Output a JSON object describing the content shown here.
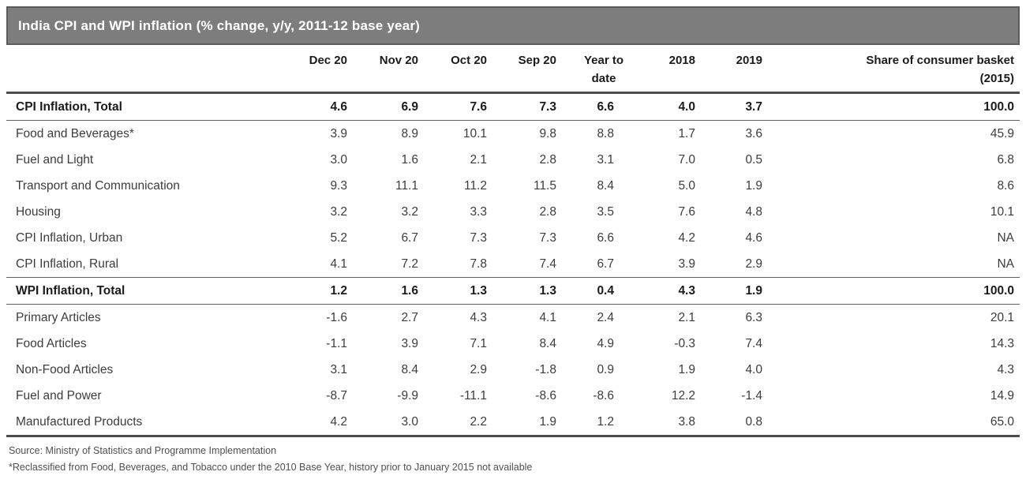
{
  "title": "India CPI and WPI inflation (% change, y/y, 2011-12 base year)",
  "chart_data": {
    "type": "table",
    "title": "India CPI and WPI inflation (% change, y/y, 2011-12 base year)",
    "columns": [
      {
        "l1": "",
        "l2": ""
      },
      {
        "l1": "Dec 20",
        "l2": ""
      },
      {
        "l1": "Nov 20",
        "l2": ""
      },
      {
        "l1": "Oct 20",
        "l2": ""
      },
      {
        "l1": "Sep 20",
        "l2": ""
      },
      {
        "l1": "Year to",
        "l2": "date"
      },
      {
        "l1": "2018",
        "l2": ""
      },
      {
        "l1": "2019",
        "l2": ""
      },
      {
        "l1": "Share of consumer basket",
        "l2": "(2015)"
      }
    ],
    "rows": [
      {
        "label": "CPI Inflation, Total",
        "bold": true,
        "values": [
          "4.6",
          "6.9",
          "7.6",
          "7.3",
          "6.6",
          "4.0",
          "3.7",
          "100.0"
        ]
      },
      {
        "label": "Food and Beverages*",
        "bold": false,
        "values": [
          "3.9",
          "8.9",
          "10.1",
          "9.8",
          "8.8",
          "1.7",
          "3.6",
          "45.9"
        ]
      },
      {
        "label": "Fuel and Light",
        "bold": false,
        "values": [
          "3.0",
          "1.6",
          "2.1",
          "2.8",
          "3.1",
          "7.0",
          "0.5",
          "6.8"
        ]
      },
      {
        "label": "Transport and Communication",
        "bold": false,
        "values": [
          "9.3",
          "11.1",
          "11.2",
          "11.5",
          "8.4",
          "5.0",
          "1.9",
          "8.6"
        ]
      },
      {
        "label": "Housing",
        "bold": false,
        "values": [
          "3.2",
          "3.2",
          "3.3",
          "2.8",
          "3.5",
          "7.6",
          "4.8",
          "10.1"
        ]
      },
      {
        "label": "CPI Inflation, Urban",
        "bold": false,
        "values": [
          "5.2",
          "6.7",
          "7.3",
          "7.3",
          "6.6",
          "4.2",
          "4.6",
          "NA"
        ]
      },
      {
        "label": "CPI Inflation, Rural",
        "bold": false,
        "values": [
          "4.1",
          "7.2",
          "7.8",
          "7.4",
          "6.7",
          "3.9",
          "2.9",
          "NA"
        ]
      },
      {
        "label": "WPI Inflation, Total",
        "bold": true,
        "values": [
          "1.2",
          "1.6",
          "1.3",
          "1.3",
          "0.4",
          "4.3",
          "1.9",
          "100.0"
        ]
      },
      {
        "label": "Primary Articles",
        "bold": false,
        "values": [
          "-1.6",
          "2.7",
          "4.3",
          "4.1",
          "2.4",
          "2.1",
          "6.3",
          "20.1"
        ]
      },
      {
        "label": "Food Articles",
        "bold": false,
        "values": [
          "-1.1",
          "3.9",
          "7.1",
          "8.4",
          "4.9",
          "-0.3",
          "7.4",
          "14.3"
        ]
      },
      {
        "label": "Non-Food Articles",
        "bold": false,
        "values": [
          "3.1",
          "8.4",
          "2.9",
          "-1.8",
          "0.9",
          "1.9",
          "4.0",
          "4.3"
        ]
      },
      {
        "label": "Fuel and Power",
        "bold": false,
        "values": [
          "-8.7",
          "-9.9",
          "-11.1",
          "-8.6",
          "-8.6",
          "12.2",
          "-1.4",
          "14.9"
        ]
      },
      {
        "label": "Manufactured Products",
        "bold": false,
        "values": [
          "4.2",
          "3.0",
          "2.2",
          "1.9",
          "1.2",
          "3.8",
          "0.8",
          "65.0"
        ]
      }
    ]
  },
  "footnotes": [
    "Source: Ministry of Statistics and Programme Implementation",
    "*Reclassified from Food, Beverages, and Tobacco under the 2010 Base Year, history prior to January 2015 not available"
  ],
  "colors": {
    "title_bar_bg": "#7d7d7d",
    "title_bar_border": "#5c5c5c",
    "title_text": "#ffffff",
    "rule_thick": "#4d4d4d",
    "rule_thin": "#606060",
    "text_bold": "#1b1b1b",
    "text_body": "#3c3c3c",
    "text_note": "#4f4f4f"
  }
}
